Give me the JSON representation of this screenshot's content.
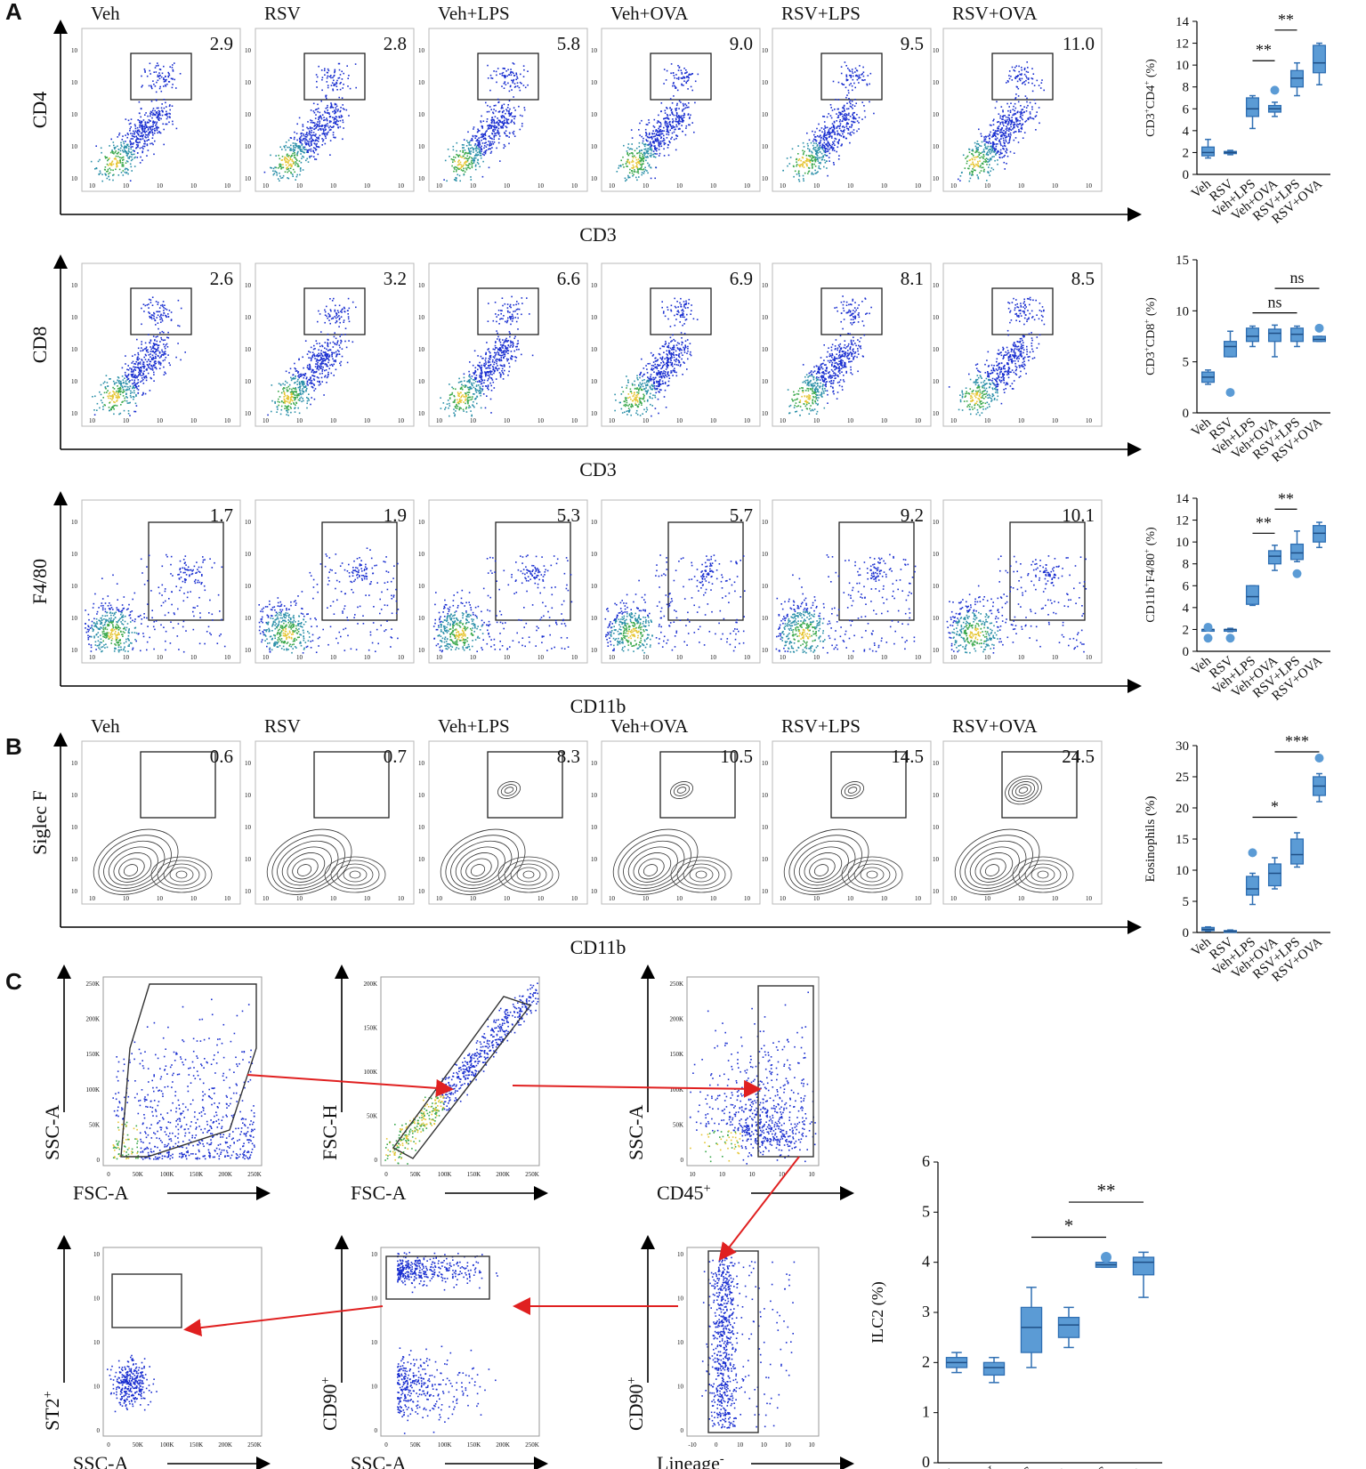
{
  "panels": {
    "a": "A",
    "b": "B",
    "c": "C"
  },
  "groups": [
    "Veh",
    "RSV",
    "Veh+LPS",
    "Veh+OVA",
    "RSV+LPS",
    "RSV+OVA"
  ],
  "flow_rows": [
    {
      "id": "cd4",
      "ylabel": "CD4",
      "xlabel": "CD3",
      "values": [
        "2.9",
        "2.8",
        "5.8",
        "9.0",
        "9.5",
        "11.0"
      ],
      "show_group_titles": true
    },
    {
      "id": "cd8",
      "ylabel": "CD8",
      "xlabel": "CD3",
      "values": [
        "2.6",
        "3.2",
        "6.6",
        "6.9",
        "8.1",
        "8.5"
      ],
      "show_group_titles": false
    },
    {
      "id": "f480",
      "ylabel": "F4/80",
      "xlabel": "CD11b",
      "values": [
        "1.7",
        "1.9",
        "5.3",
        "5.7",
        "9.2",
        "10.1"
      ],
      "show_group_titles": false
    },
    {
      "id": "siglec",
      "ylabel": "Siglec F",
      "xlabel": "CD11b",
      "values": [
        "0.6",
        "0.7",
        "8.3",
        "10.5",
        "14.5",
        "24.5"
      ],
      "show_group_titles": true
    }
  ],
  "gating": {
    "plots": [
      {
        "id": "fsc-ssc",
        "ylabel": "SSC-A",
        "xlabel": "FSC-A",
        "xticks": [
          "0",
          "50K",
          "100K",
          "150K",
          "200K",
          "250K"
        ],
        "yticks": [
          "0",
          "50K",
          "100K",
          "150K",
          "200K",
          "250K"
        ]
      },
      {
        "id": "singlets",
        "ylabel": "FSC-H",
        "xlabel": "FSC-A",
        "xticks": [
          "0",
          "50K",
          "100K",
          "150K",
          "200K",
          "250K"
        ],
        "yticks": [
          "0",
          "50K",
          "100K",
          "150K",
          "200K"
        ]
      },
      {
        "id": "cd45",
        "ylabel": "SSC-A",
        "xlabel": "CD45",
        "xlabel_sup": "+",
        "xticks": [
          "10",
          "10",
          "10",
          "10",
          "10"
        ],
        "yticks": [
          "0",
          "50K",
          "100K",
          "150K",
          "200K",
          "250K"
        ]
      },
      {
        "id": "st2",
        "ylabel": "ST2",
        "ylabel_sup": "+",
        "xlabel": "SSC-A",
        "xticks": [
          "0",
          "50K",
          "100K",
          "150K",
          "200K",
          "250K"
        ],
        "yticks": [
          "0",
          "10",
          "10",
          "10",
          "10"
        ]
      },
      {
        "id": "cd90-ssc",
        "ylabel": "CD90",
        "ylabel_sup": "+",
        "xlabel": "SSC-A",
        "xticks": [
          "0",
          "50K",
          "100K",
          "150K",
          "200K",
          "250K"
        ],
        "yticks": [
          "0",
          "10",
          "10",
          "10",
          "10"
        ]
      },
      {
        "id": "cd90-lin",
        "ylabel": "CD90",
        "ylabel_sup": "+",
        "xlabel": "Lineage",
        "xlabel_sup": "-",
        "xticks": [
          "-10",
          "0",
          "10",
          "10",
          "10",
          "10"
        ],
        "yticks": [
          "0",
          "10",
          "10",
          "10",
          "10"
        ]
      }
    ]
  },
  "chart_data": [
    {
      "id": "cd4-box",
      "type": "box",
      "ylabel": "CD3+CD4+ (%)",
      "ylabel_main": "CD3",
      "ylabel_sup1": "+",
      "ylabel_mid": "CD4",
      "ylabel_sup2": "+",
      "ylabel_tail": " (%)",
      "categories": [
        "Veh",
        "RSV",
        "Veh+LPS",
        "Veh+OVA",
        "RSV+LPS",
        "RSV+OVA"
      ],
      "ylim": [
        0,
        14
      ],
      "yticks": [
        0,
        2,
        4,
        6,
        8,
        10,
        12,
        14
      ],
      "boxes": [
        {
          "min": 1.5,
          "q1": 1.7,
          "median": 2.0,
          "q3": 2.5,
          "max": 3.2,
          "outliers": []
        },
        {
          "min": 1.8,
          "q1": 1.9,
          "median": 2.0,
          "q3": 2.1,
          "max": 2.2,
          "outliers": []
        },
        {
          "min": 4.2,
          "q1": 5.3,
          "median": 6.0,
          "q3": 7.0,
          "max": 7.2,
          "outliers": []
        },
        {
          "min": 5.3,
          "q1": 5.7,
          "median": 6.0,
          "q3": 6.3,
          "max": 6.6,
          "outliers": [
            7.7
          ]
        },
        {
          "min": 7.2,
          "q1": 8.0,
          "median": 8.8,
          "q3": 9.5,
          "max": 10.2,
          "outliers": []
        },
        {
          "min": 8.2,
          "q1": 9.3,
          "median": 10.2,
          "q3": 11.8,
          "max": 12.0,
          "outliers": []
        }
      ],
      "significance": [
        {
          "from": 3,
          "to": 4,
          "y": 10.4,
          "label": "**"
        },
        {
          "from": 4,
          "to": 5,
          "y": 13.2,
          "label": "**"
        }
      ]
    },
    {
      "id": "cd8-box",
      "type": "box",
      "ylabel": "CD3+CD8+ (%)",
      "ylabel_main": "CD3",
      "ylabel_sup1": "+",
      "ylabel_mid": "CD8",
      "ylabel_sup2": "+",
      "ylabel_tail": " (%)",
      "categories": [
        "Veh",
        "RSV",
        "Veh+LPS",
        "Veh+OVA",
        "RSV+LPS",
        "RSV+OVA"
      ],
      "ylim": [
        0,
        15
      ],
      "yticks": [
        0,
        5,
        10,
        15
      ],
      "boxes": [
        {
          "min": 2.8,
          "q1": 3.0,
          "median": 3.5,
          "q3": 4.0,
          "max": 4.2,
          "outliers": []
        },
        {
          "min": 5.5,
          "q1": 5.5,
          "median": 6.5,
          "q3": 7.0,
          "max": 8.0,
          "outliers": [
            2.0
          ]
        },
        {
          "min": 6.5,
          "q1": 7.0,
          "median": 7.5,
          "q3": 8.3,
          "max": 8.5,
          "outliers": []
        },
        {
          "min": 5.5,
          "q1": 7.0,
          "median": 7.8,
          "q3": 8.2,
          "max": 8.6,
          "outliers": []
        },
        {
          "min": 6.5,
          "q1": 7.0,
          "median": 7.7,
          "q3": 8.3,
          "max": 8.5,
          "outliers": []
        },
        {
          "min": 7.0,
          "q1": 7.0,
          "median": 7.2,
          "q3": 7.5,
          "max": 7.5,
          "outliers": [
            8.3
          ]
        }
      ],
      "significance": [
        {
          "from": 3,
          "to": 5,
          "y": 9.8,
          "label": "ns"
        },
        {
          "from": 4,
          "to": 6,
          "y": 12.2,
          "label": "ns"
        }
      ]
    },
    {
      "id": "f480-box",
      "type": "box",
      "ylabel": "CD11b+F4/80+ (%)",
      "ylabel_main": "CD11b",
      "ylabel_sup1": "+",
      "ylabel_mid": "F4/80",
      "ylabel_sup2": "+",
      "ylabel_tail": " (%)",
      "categories": [
        "Veh",
        "RSV",
        "Veh+LPS",
        "Veh+OVA",
        "RSV+LPS",
        "RSV+OVA"
      ],
      "ylim": [
        0,
        14
      ],
      "yticks": [
        0,
        2,
        4,
        6,
        8,
        10,
        12,
        14
      ],
      "boxes": [
        {
          "min": 2.0,
          "q1": 2.0,
          "median": 2.0,
          "q3": 2.0,
          "max": 2.0,
          "outliers": [
            1.2,
            2.2
          ]
        },
        {
          "min": 1.8,
          "q1": 1.9,
          "median": 2.0,
          "q3": 2.0,
          "max": 2.1,
          "outliers": [
            1.2
          ]
        },
        {
          "min": 4.2,
          "q1": 4.3,
          "median": 5.0,
          "q3": 6.0,
          "max": 6.0,
          "outliers": []
        },
        {
          "min": 7.4,
          "q1": 8.0,
          "median": 8.7,
          "q3": 9.2,
          "max": 9.7,
          "outliers": []
        },
        {
          "min": 8.2,
          "q1": 8.4,
          "median": 9.0,
          "q3": 9.8,
          "max": 11.0,
          "outliers": [
            7.1
          ]
        },
        {
          "min": 9.5,
          "q1": 10.0,
          "median": 10.8,
          "q3": 11.5,
          "max": 11.8,
          "outliers": []
        }
      ],
      "significance": [
        {
          "from": 3,
          "to": 4,
          "y": 10.8,
          "label": "**"
        },
        {
          "from": 4,
          "to": 5,
          "y": 13.0,
          "label": "**"
        }
      ]
    },
    {
      "id": "eos-box",
      "type": "box",
      "ylabel": "Eosinophils (%)",
      "categories": [
        "Veh",
        "RSV",
        "Veh+LPS",
        "Veh+OVA",
        "RSV+LPS",
        "RSV+OVA"
      ],
      "ylim": [
        0,
        30
      ],
      "yticks": [
        0,
        5,
        10,
        15,
        20,
        25,
        30
      ],
      "boxes": [
        {
          "min": 0.2,
          "q1": 0.3,
          "median": 0.5,
          "q3": 0.8,
          "max": 0.9,
          "outliers": []
        },
        {
          "min": 0.1,
          "q1": 0.1,
          "median": 0.2,
          "q3": 0.3,
          "max": 0.4,
          "outliers": []
        },
        {
          "min": 4.5,
          "q1": 6.0,
          "median": 7.0,
          "q3": 9.0,
          "max": 9.5,
          "outliers": [
            12.8
          ]
        },
        {
          "min": 7.0,
          "q1": 7.5,
          "median": 9.5,
          "q3": 11.0,
          "max": 12.0,
          "outliers": []
        },
        {
          "min": 10.5,
          "q1": 11.0,
          "median": 12.5,
          "q3": 15.0,
          "max": 16.0,
          "outliers": []
        },
        {
          "min": 21.0,
          "q1": 22.0,
          "median": 23.5,
          "q3": 25.0,
          "max": 25.5,
          "outliers": [
            28.0
          ]
        }
      ],
      "significance": [
        {
          "from": 3,
          "to": 5,
          "y": 18.5,
          "label": "*"
        },
        {
          "from": 4,
          "to": 6,
          "y": 29.0,
          "label": "***"
        }
      ]
    },
    {
      "id": "ilc2-box",
      "type": "box",
      "ylabel": "ILC2 (%)",
      "categories": [
        "Veh",
        "RSV",
        "Veh+LPS",
        "Veh+OVA",
        "RSV+LPS",
        "RSV+OVA"
      ],
      "ylim": [
        0,
        6
      ],
      "yticks": [
        0,
        1,
        2,
        3,
        4,
        5,
        6
      ],
      "boxes": [
        {
          "min": 1.8,
          "q1": 1.9,
          "median": 2.0,
          "q3": 2.1,
          "max": 2.2,
          "outliers": []
        },
        {
          "min": 1.6,
          "q1": 1.75,
          "median": 1.9,
          "q3": 2.0,
          "max": 2.1,
          "outliers": []
        },
        {
          "min": 1.9,
          "q1": 2.2,
          "median": 2.7,
          "q3": 3.1,
          "max": 3.5,
          "outliers": []
        },
        {
          "min": 2.3,
          "q1": 2.5,
          "median": 2.75,
          "q3": 2.9,
          "max": 3.1,
          "outliers": []
        },
        {
          "min": 3.9,
          "q1": 3.9,
          "median": 3.95,
          "q3": 4.0,
          "max": 4.0,
          "outliers": [
            4.1
          ]
        },
        {
          "min": 3.3,
          "q1": 3.75,
          "median": 4.0,
          "q3": 4.1,
          "max": 4.2,
          "outliers": []
        }
      ],
      "significance": [
        {
          "from": 3,
          "to": 5,
          "y": 4.5,
          "label": "*"
        },
        {
          "from": 4,
          "to": 6,
          "y": 5.2,
          "label": "**"
        }
      ]
    }
  ]
}
